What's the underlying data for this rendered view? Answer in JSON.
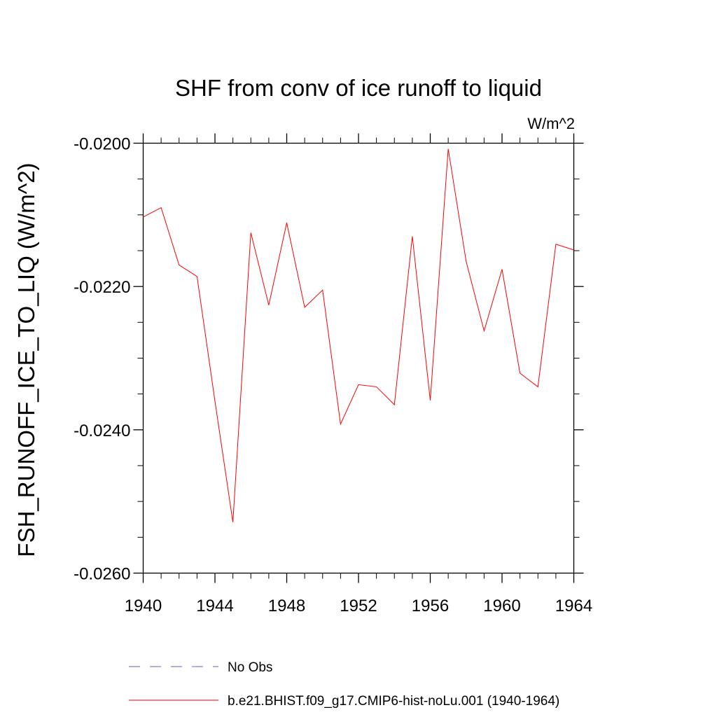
{
  "chart_data": {
    "type": "line",
    "title": "SHF from conv of ice runoff to liquid",
    "units_label": "W/m^2",
    "xlabel": "",
    "ylabel": "FSH_RUNOFF_ICE_TO_LIQ  (W/m^2)",
    "xlim": [
      1940,
      1964
    ],
    "ylim": [
      -0.026,
      -0.02
    ],
    "x_ticks": [
      1940,
      1944,
      1948,
      1952,
      1956,
      1960,
      1964
    ],
    "y_ticks": [
      -0.026,
      -0.024,
      -0.022,
      -0.02
    ],
    "y_tick_labels": [
      "-0.0260",
      "-0.0240",
      "-0.0220",
      "-0.0200"
    ],
    "y_minor_step": 0.0005,
    "x_minor_step": 1,
    "grid": false,
    "legend_position": "bottom",
    "series": [
      {
        "name": "No Obs",
        "color": "#6a5acd",
        "style": "dashed",
        "x": [],
        "y": []
      },
      {
        "name": "b.e21.BHIST.f09_g17.CMIP6-hist-noLu.001 (1940-1964)",
        "color": "#ff0000",
        "style": "solid",
        "x": [
          1940,
          1941,
          1942,
          1943,
          1944,
          1945,
          1946,
          1947,
          1948,
          1949,
          1950,
          1951,
          1952,
          1953,
          1954,
          1955,
          1956,
          1957,
          1958,
          1959,
          1960,
          1961,
          1962,
          1963,
          1964
        ],
        "y": [
          -0.02103,
          -0.0209,
          -0.0217,
          -0.02186,
          -0.0236,
          -0.02529,
          -0.02125,
          -0.02226,
          -0.02111,
          -0.02229,
          -0.02205,
          -0.02392,
          -0.02337,
          -0.0234,
          -0.02365,
          -0.0213,
          -0.02359,
          -0.02008,
          -0.02165,
          -0.02262,
          -0.02176,
          -0.02321,
          -0.0234,
          -0.02141,
          -0.02149
        ]
      }
    ]
  }
}
